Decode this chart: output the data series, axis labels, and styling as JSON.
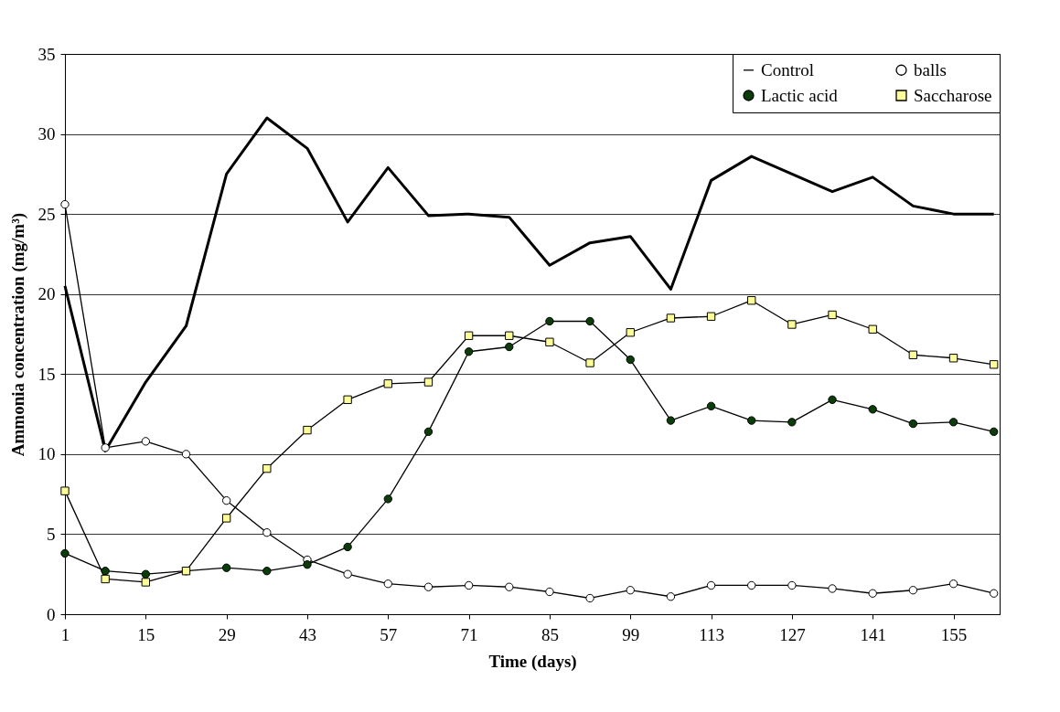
{
  "chart_data": {
    "type": "line",
    "xlabel": "Time (days)",
    "ylabel": "Ammonia concentration (mg/m³)",
    "x": [
      1,
      8,
      15,
      22,
      29,
      36,
      43,
      50,
      57,
      64,
      71,
      78,
      85,
      92,
      99,
      106,
      113,
      120,
      127,
      134,
      141,
      148,
      155,
      162
    ],
    "xlim": [
      1,
      163
    ],
    "xticks": [
      1,
      15,
      29,
      43,
      57,
      71,
      85,
      99,
      113,
      127,
      141,
      155
    ],
    "ylim": [
      0,
      35
    ],
    "yticks": [
      0,
      5,
      10,
      15,
      20,
      25,
      30,
      35
    ],
    "grid": "y",
    "legend": "top right",
    "series": [
      {
        "name": "Control",
        "color": "#000000",
        "marker": "none",
        "values": [
          20.5,
          10.2,
          14.5,
          18,
          27.5,
          31,
          29.1,
          24.5,
          27.9,
          24.9,
          25,
          24.8,
          21.8,
          23.2,
          23.6,
          20.3,
          27.1,
          28.6,
          27.5,
          26.4,
          27.3,
          25.5,
          25,
          25
        ]
      },
      {
        "name": "balls",
        "color": "#ffffff",
        "marker": "circle",
        "values": [
          25.6,
          10.4,
          10.8,
          10,
          7.1,
          5.1,
          3.4,
          2.5,
          1.9,
          1.7,
          1.8,
          1.7,
          1.4,
          1.0,
          1.5,
          1.1,
          1.8,
          1.8,
          1.8,
          1.6,
          1.3,
          1.5,
          1.9,
          1.3
        ]
      },
      {
        "name": "Lactic acid",
        "color": "#0b3d0b",
        "marker": "circle",
        "values": [
          3.8,
          2.7,
          2.5,
          2.7,
          2.9,
          2.7,
          3.1,
          4.2,
          7.2,
          11.4,
          16.4,
          16.7,
          18.3,
          18.3,
          15.9,
          12.1,
          13.0,
          12.1,
          12.0,
          13.4,
          12.8,
          11.9,
          12.0,
          11.4
        ]
      },
      {
        "name": "Saccharose",
        "color": "#ffff99",
        "marker": "square",
        "values": [
          7.7,
          2.2,
          2.0,
          2.7,
          6.0,
          9.1,
          11.5,
          13.4,
          14.4,
          14.5,
          17.4,
          17.4,
          17.0,
          15.7,
          17.6,
          18.5,
          18.6,
          19.6,
          18.1,
          18.7,
          17.8,
          16.2,
          16.0,
          15.6
        ]
      }
    ]
  }
}
